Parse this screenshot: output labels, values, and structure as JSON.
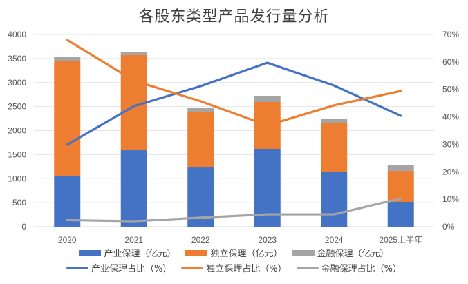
{
  "chart_data": {
    "type": "bar",
    "title": "各股东类型产品发行量分析",
    "categories": [
      "2020",
      "2021",
      "2022",
      "2023",
      "2024",
      "2025上半年"
    ],
    "xlabel": "",
    "ylabel": "",
    "y_left": {
      "ylim": [
        0,
        4000
      ],
      "ticks": [
        0,
        500,
        1000,
        1500,
        2000,
        2500,
        3000,
        3500,
        4000
      ]
    },
    "y_right": {
      "ylim": [
        0,
        70
      ],
      "ticks": [
        "0%",
        "10%",
        "20%",
        "30%",
        "40%",
        "50%",
        "60%",
        "70%"
      ]
    },
    "grid": true,
    "legend_position": "bottom",
    "bar_series": [
      {
        "name": "产业保理（亿元）",
        "color": "#4472C4",
        "values": [
          1047,
          1591,
          1247,
          1620,
          1147,
          516
        ]
      },
      {
        "name": "独立保理（亿元）",
        "color": "#ED7D31",
        "values": [
          2408,
          1979,
          1133,
          975,
          1004,
          645
        ]
      },
      {
        "name": "金融保理（亿元）",
        "color": "#A5A5A5",
        "values": [
          86,
          71,
          86,
          129,
          100,
          129
        ]
      }
    ],
    "line_series": [
      {
        "name": "产业保理占比（%）",
        "color": "#4472C4",
        "values": [
          29.9,
          43.9,
          51.2,
          59.7,
          51.4,
          40.4
        ]
      },
      {
        "name": "独立保理占比（%）",
        "color": "#ED7D31",
        "values": [
          68.0,
          53.2,
          45.7,
          36.9,
          44.2,
          49.4
        ]
      },
      {
        "name": "金融保理占比（%）",
        "color": "#A5A5A5",
        "values": [
          2.4,
          2.0,
          3.3,
          4.5,
          4.5,
          10.3
        ]
      }
    ]
  }
}
